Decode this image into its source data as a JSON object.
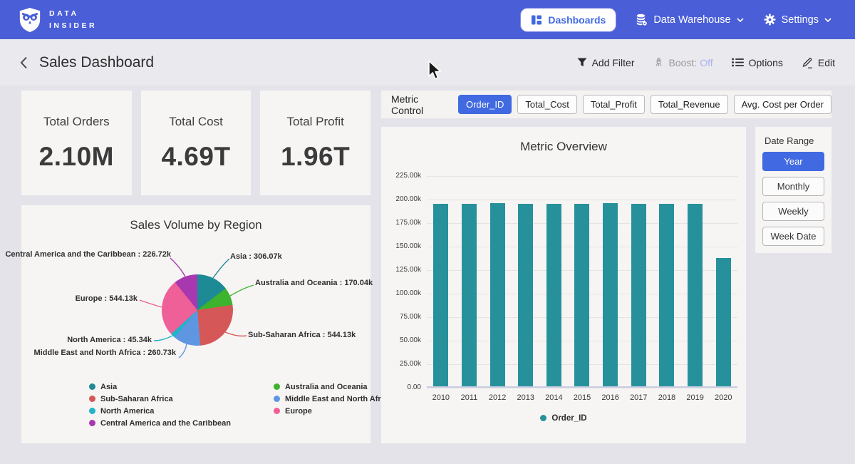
{
  "brand": {
    "line1": "DATA",
    "line2": "INSIDER"
  },
  "topnav": {
    "dashboards": "Dashboards",
    "data_warehouse": "Data Warehouse",
    "settings": "Settings"
  },
  "header": {
    "title": "Sales Dashboard",
    "add_filter": "Add Filter",
    "boost_label": "Boost:",
    "boost_value": "Off",
    "options": "Options",
    "edit": "Edit"
  },
  "kpis": [
    {
      "label": "Total Orders",
      "value": "2.10M"
    },
    {
      "label": "Total Cost",
      "value": "4.69T"
    },
    {
      "label": "Total Profit",
      "value": "1.96T"
    }
  ],
  "metric_control": {
    "label": "Metric Control",
    "options": [
      "Order_ID",
      "Total_Cost",
      "Total_Profit",
      "Total_Revenue",
      "Avg. Cost per Order"
    ],
    "selected": "Order_ID"
  },
  "date_range": {
    "label": "Date Range",
    "options": [
      "Year",
      "Monthly",
      "Weekly",
      "Week Date"
    ],
    "selected": "Year"
  },
  "colors": {
    "topbar": "#4a5ed8",
    "accent": "#4169e1",
    "bar_series": "#27919b"
  },
  "chart_data": [
    {
      "type": "pie",
      "title": "Sales Volume by Region",
      "unit": "k",
      "slices": [
        {
          "name": "Asia",
          "value": 306.07,
          "label": "Asia : 306.07k",
          "color": "#1e8a96"
        },
        {
          "name": "Australia and Oceania",
          "value": 170.04,
          "label": "Australia and Oceania : 170.04k",
          "color": "#3db32e"
        },
        {
          "name": "Sub-Saharan Africa",
          "value": 544.13,
          "label": "Sub-Saharan Africa : 544.13k",
          "color": "#d65757"
        },
        {
          "name": "Middle East and North Africa",
          "value": 260.73,
          "label": "Middle East and North Africa : 260.73k",
          "color": "#5e96e2"
        },
        {
          "name": "North America",
          "value": 45.34,
          "label": "North America : 45.34k",
          "color": "#22b3c7"
        },
        {
          "name": "Europe",
          "value": 544.13,
          "label": "Europe : 544.13k",
          "color": "#ef5f98"
        },
        {
          "name": "Central America and the Caribbean",
          "value": 226.72,
          "label": "Central America and the Caribbean : 226.72k",
          "color": "#a838b0"
        }
      ],
      "legend_columns": [
        [
          "Asia",
          "Sub-Saharan Africa",
          "North America",
          "Central America and the Caribbean"
        ],
        [
          "Australia and Oceania",
          "Middle East and North Africa",
          "Europe"
        ]
      ]
    },
    {
      "type": "bar",
      "title": "Metric Overview",
      "categories": [
        "2010",
        "2011",
        "2012",
        "2013",
        "2014",
        "2015",
        "2016",
        "2017",
        "2018",
        "2019",
        "2020"
      ],
      "series": [
        {
          "name": "Order_ID",
          "color": "#27919b",
          "values": [
            195.4,
            195.5,
            196.2,
            195.5,
            195.4,
            195.5,
            196.3,
            195.6,
            195.5,
            195.6,
            137.2
          ]
        }
      ],
      "unit": "k",
      "ylim": [
        0,
        225
      ],
      "yticks": [
        "225.00k",
        "200.00k",
        "175.00k",
        "150.00k",
        "125.00k",
        "100.00k",
        "75.00k",
        "50.00k",
        "25.00k",
        "0.00"
      ],
      "grid": true,
      "legend_position": "bottom",
      "xlabel": "",
      "ylabel": ""
    }
  ]
}
